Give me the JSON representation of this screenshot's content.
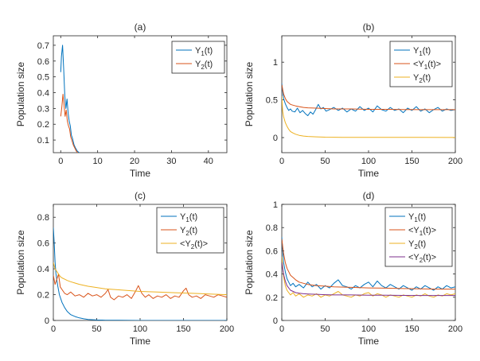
{
  "chart_data": [
    {
      "panel": "(a)",
      "type": "line",
      "title": "(a)",
      "xlabel": "Time",
      "ylabel": "Population size",
      "xlim": [
        -2,
        45
      ],
      "ylim": [
        0.02,
        0.76
      ],
      "xticks": [
        0,
        10,
        20,
        30,
        40
      ],
      "xtick_labels": [
        "0",
        "10",
        "20",
        "30",
        "40"
      ],
      "yticks": [
        0.1,
        0.2,
        0.3,
        0.4,
        0.5,
        0.6,
        0.7
      ],
      "ytick_labels": [
        "0.1",
        "0.2",
        "0.3",
        "0.4",
        "0.5",
        "0.6",
        "0.7"
      ],
      "legend_position": "top-right",
      "series": [
        {
          "name": "Y1(t)",
          "label_main": "Y",
          "label_sub": "1",
          "label_tail": "(t)",
          "color": "#0072BD",
          "x": [
            0,
            0.2,
            0.5,
            0.8,
            1.1,
            1.4,
            1.7,
            2.0,
            2.3,
            2.6,
            2.9,
            3.2,
            3.6,
            4.0,
            4.5,
            5.0
          ],
          "y": [
            0.53,
            0.63,
            0.7,
            0.55,
            0.38,
            0.3,
            0.36,
            0.27,
            0.22,
            0.19,
            0.13,
            0.11,
            0.07,
            0.05,
            0.03,
            0.02
          ]
        },
        {
          "name": "Y2(t)",
          "label_main": "Y",
          "label_sub": "2",
          "label_tail": "(t)",
          "color": "#D95319",
          "x": [
            0,
            0.3,
            0.6,
            0.9,
            1.2,
            1.5,
            1.8,
            2.1,
            2.4,
            2.7,
            3.0,
            3.4,
            3.8,
            4.2,
            4.6
          ],
          "y": [
            0.25,
            0.31,
            0.39,
            0.32,
            0.25,
            0.29,
            0.22,
            0.19,
            0.17,
            0.12,
            0.1,
            0.07,
            0.05,
            0.03,
            0.02
          ]
        }
      ]
    },
    {
      "panel": "(b)",
      "type": "line",
      "title": "(b)",
      "xlabel": "Time",
      "ylabel": "Population size",
      "xlim": [
        0,
        200
      ],
      "ylim": [
        -0.2,
        1.35
      ],
      "xticks": [
        0,
        50,
        100,
        150,
        200
      ],
      "xtick_labels": [
        "0",
        "50",
        "100",
        "150",
        "200"
      ],
      "yticks": [
        0,
        0.5,
        1
      ],
      "ytick_labels": [
        "0",
        "0.5",
        "1"
      ],
      "legend_position": "top-right",
      "series": [
        {
          "name": "Y1(t)",
          "label_main": "Y",
          "label_sub": "1",
          "label_tail": "(t)",
          "color": "#0072BD",
          "x": [
            0,
            2,
            4,
            6,
            8,
            10,
            12,
            15,
            18,
            21,
            24,
            27,
            30,
            33,
            36,
            39,
            42,
            45,
            48,
            51,
            55,
            60,
            65,
            70,
            75,
            80,
            85,
            90,
            95,
            100,
            105,
            110,
            115,
            120,
            125,
            130,
            135,
            140,
            145,
            150,
            155,
            160,
            165,
            170,
            175,
            180,
            185,
            190,
            195,
            200
          ],
          "y": [
            0.72,
            0.52,
            0.45,
            0.4,
            0.36,
            0.38,
            0.35,
            0.34,
            0.39,
            0.33,
            0.36,
            0.32,
            0.29,
            0.34,
            0.31,
            0.37,
            0.44,
            0.38,
            0.4,
            0.35,
            0.37,
            0.4,
            0.36,
            0.39,
            0.34,
            0.38,
            0.35,
            0.41,
            0.36,
            0.39,
            0.34,
            0.42,
            0.37,
            0.35,
            0.4,
            0.36,
            0.38,
            0.33,
            0.39,
            0.36,
            0.41,
            0.35,
            0.38,
            0.33,
            0.37,
            0.4,
            0.35,
            0.38,
            0.36,
            0.37
          ]
        },
        {
          "name": "<Y1(t)>",
          "label_main": "<Y",
          "label_sub": "1",
          "label_tail": "(t)>",
          "color": "#D95319",
          "x": [
            0,
            2,
            4,
            6,
            8,
            10,
            13,
            16,
            20,
            25,
            30,
            40,
            50,
            60,
            80,
            100,
            120,
            140,
            160,
            180,
            200
          ],
          "y": [
            0.7,
            0.58,
            0.52,
            0.48,
            0.46,
            0.44,
            0.43,
            0.42,
            0.41,
            0.4,
            0.395,
            0.39,
            0.385,
            0.38,
            0.38,
            0.375,
            0.375,
            0.372,
            0.37,
            0.37,
            0.37
          ]
        },
        {
          "name": "Y2(t)",
          "label_main": "Y",
          "label_sub": "2",
          "label_tail": "(t)",
          "color": "#EDB120",
          "x": [
            0,
            1,
            2,
            4,
            6,
            8,
            10,
            13,
            16,
            20,
            25,
            30,
            40,
            50,
            70,
            100,
            130,
            160,
            200
          ],
          "y": [
            0.55,
            0.35,
            0.28,
            0.2,
            0.15,
            0.11,
            0.08,
            0.06,
            0.045,
            0.03,
            0.02,
            0.015,
            0.01,
            0.006,
            0.004,
            0.003,
            0.002,
            0.002,
            0.001
          ]
        }
      ]
    },
    {
      "panel": "(c)",
      "type": "line",
      "title": "(c)",
      "xlabel": "Time",
      "ylabel": "Population size",
      "xlim": [
        0,
        200
      ],
      "ylim": [
        0,
        0.9
      ],
      "xticks": [
        0,
        50,
        100,
        150,
        200
      ],
      "xtick_labels": [
        "0",
        "50",
        "100",
        "150",
        "200"
      ],
      "yticks": [
        0,
        0.2,
        0.4,
        0.6,
        0.8
      ],
      "ytick_labels": [
        "0",
        "0.2",
        "0.4",
        "0.6",
        "0.8"
      ],
      "legend_position": "top-right",
      "series": [
        {
          "name": "Y1(t)",
          "label_main": "Y",
          "label_sub": "1",
          "label_tail": "(t)",
          "color": "#0072BD",
          "x": [
            0,
            1,
            2,
            3,
            5,
            7,
            10,
            13,
            16,
            20,
            25,
            30,
            35,
            40,
            50,
            60,
            75,
            100,
            150,
            200
          ],
          "y": [
            0.72,
            0.6,
            0.45,
            0.36,
            0.27,
            0.2,
            0.14,
            0.1,
            0.07,
            0.045,
            0.03,
            0.02,
            0.013,
            0.008,
            0.004,
            0.002,
            0.001,
            0.0,
            0.0,
            0.0
          ]
        },
        {
          "name": "Y2(t)",
          "label_main": "Y",
          "label_sub": "2",
          "label_tail": "(t)",
          "color": "#D95319",
          "x": [
            0,
            2,
            4,
            6,
            8,
            10,
            13,
            16,
            20,
            25,
            30,
            35,
            40,
            45,
            50,
            55,
            60,
            63,
            66,
            70,
            75,
            80,
            85,
            90,
            95,
            98,
            102,
            106,
            110,
            115,
            120,
            125,
            130,
            135,
            140,
            145,
            150,
            153,
            156,
            160,
            165,
            170,
            175,
            180,
            185,
            190,
            195,
            200
          ],
          "y": [
            0.35,
            0.28,
            0.32,
            0.36,
            0.26,
            0.24,
            0.21,
            0.2,
            0.22,
            0.19,
            0.2,
            0.18,
            0.21,
            0.19,
            0.2,
            0.18,
            0.21,
            0.24,
            0.18,
            0.16,
            0.19,
            0.18,
            0.2,
            0.17,
            0.23,
            0.27,
            0.21,
            0.18,
            0.2,
            0.17,
            0.19,
            0.18,
            0.2,
            0.17,
            0.19,
            0.18,
            0.23,
            0.25,
            0.2,
            0.18,
            0.19,
            0.17,
            0.2,
            0.19,
            0.18,
            0.2,
            0.19,
            0.18
          ]
        },
        {
          "name": "<Y2(t)>",
          "label_main": "<Y",
          "label_sub": "2",
          "label_tail": "(t)>",
          "color": "#EDB120",
          "x": [
            0,
            2,
            4,
            6,
            8,
            10,
            13,
            16,
            20,
            25,
            30,
            40,
            50,
            60,
            80,
            100,
            120,
            140,
            160,
            180,
            200
          ],
          "y": [
            0.45,
            0.4,
            0.38,
            0.36,
            0.34,
            0.33,
            0.32,
            0.31,
            0.3,
            0.29,
            0.28,
            0.265,
            0.255,
            0.245,
            0.235,
            0.225,
            0.22,
            0.215,
            0.21,
            0.205,
            0.2
          ]
        }
      ]
    },
    {
      "panel": "(d)",
      "type": "line",
      "title": "(d)",
      "xlabel": "Time",
      "ylabel": "Population size",
      "xlim": [
        0,
        200
      ],
      "ylim": [
        0,
        1
      ],
      "xticks": [
        0,
        50,
        100,
        150,
        200
      ],
      "xtick_labels": [
        "0",
        "50",
        "100",
        "150",
        "200"
      ],
      "yticks": [
        0,
        0.2,
        0.4,
        0.6,
        0.8,
        1
      ],
      "ytick_labels": [
        "0",
        "0.2",
        "0.4",
        "0.6",
        "0.8",
        "1"
      ],
      "legend_position": "top-right",
      "series": [
        {
          "name": "Y1(t)",
          "label_main": "Y",
          "label_sub": "1",
          "label_tail": "(t)",
          "color": "#0072BD",
          "x": [
            0,
            2,
            4,
            6,
            8,
            10,
            13,
            16,
            20,
            25,
            30,
            35,
            40,
            45,
            50,
            55,
            60,
            65,
            70,
            75,
            80,
            85,
            90,
            95,
            100,
            105,
            110,
            115,
            120,
            125,
            130,
            135,
            140,
            145,
            150,
            155,
            160,
            165,
            170,
            175,
            180,
            185,
            190,
            195,
            200
          ],
          "y": [
            0.72,
            0.5,
            0.42,
            0.36,
            0.33,
            0.3,
            0.32,
            0.29,
            0.31,
            0.28,
            0.33,
            0.29,
            0.31,
            0.27,
            0.3,
            0.28,
            0.32,
            0.35,
            0.3,
            0.29,
            0.27,
            0.3,
            0.28,
            0.31,
            0.33,
            0.29,
            0.34,
            0.3,
            0.28,
            0.31,
            0.29,
            0.27,
            0.3,
            0.28,
            0.26,
            0.29,
            0.27,
            0.3,
            0.28,
            0.26,
            0.29,
            0.27,
            0.3,
            0.28,
            0.29
          ]
        },
        {
          "name": "<Y1(t)>",
          "label_main": "<Y",
          "label_sub": "1",
          "label_tail": "(t)>",
          "color": "#D95319",
          "x": [
            0,
            2,
            4,
            6,
            8,
            10,
            13,
            16,
            20,
            25,
            30,
            40,
            50,
            60,
            80,
            100,
            120,
            140,
            160,
            180,
            200
          ],
          "y": [
            0.7,
            0.58,
            0.5,
            0.45,
            0.42,
            0.39,
            0.37,
            0.35,
            0.33,
            0.32,
            0.31,
            0.3,
            0.295,
            0.29,
            0.285,
            0.28,
            0.278,
            0.275,
            0.272,
            0.27,
            0.27
          ]
        },
        {
          "name": "Y2(t)",
          "label_main": "Y",
          "label_sub": "2",
          "label_tail": "(t)",
          "color": "#EDB120",
          "x": [
            0,
            2,
            4,
            6,
            8,
            10,
            13,
            16,
            20,
            25,
            30,
            35,
            40,
            45,
            50,
            55,
            60,
            65,
            70,
            75,
            80,
            85,
            90,
            95,
            100,
            105,
            110,
            115,
            120,
            125,
            130,
            135,
            140,
            145,
            150,
            155,
            160,
            165,
            170,
            175,
            180,
            185,
            190,
            195,
            200
          ],
          "y": [
            0.55,
            0.38,
            0.3,
            0.26,
            0.24,
            0.22,
            0.24,
            0.21,
            0.23,
            0.2,
            0.22,
            0.21,
            0.23,
            0.2,
            0.22,
            0.21,
            0.23,
            0.25,
            0.22,
            0.21,
            0.2,
            0.22,
            0.21,
            0.23,
            0.24,
            0.21,
            0.23,
            0.22,
            0.2,
            0.22,
            0.21,
            0.2,
            0.22,
            0.21,
            0.2,
            0.22,
            0.21,
            0.23,
            0.21,
            0.2,
            0.22,
            0.21,
            0.23,
            0.22,
            0.23
          ]
        },
        {
          "name": "<Y2(t)>",
          "label_main": "<Y",
          "label_sub": "2",
          "label_tail": "(t)>",
          "color": "#7E2F8E",
          "x": [
            0,
            2,
            4,
            6,
            8,
            10,
            13,
            16,
            20,
            25,
            30,
            40,
            50,
            60,
            80,
            100,
            120,
            140,
            160,
            180,
            200
          ],
          "y": [
            0.5,
            0.4,
            0.34,
            0.3,
            0.28,
            0.26,
            0.25,
            0.24,
            0.235,
            0.23,
            0.228,
            0.225,
            0.222,
            0.22,
            0.22,
            0.218,
            0.217,
            0.216,
            0.215,
            0.215,
            0.215
          ]
        }
      ]
    }
  ]
}
